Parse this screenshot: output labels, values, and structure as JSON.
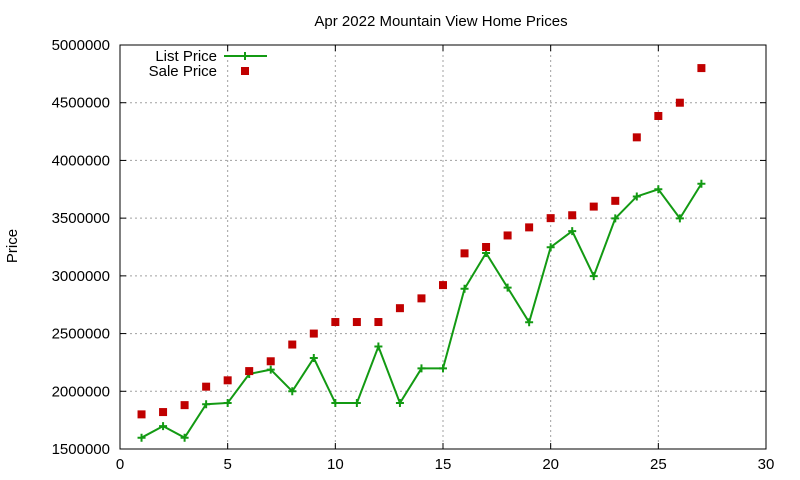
{
  "chart_data": {
    "type": "line",
    "title": "Apr 2022 Mountain View Home Prices",
    "xlabel": "",
    "ylabel": "Price",
    "xlim": [
      0,
      30
    ],
    "ylim": [
      1500000,
      5000000
    ],
    "xticks": [
      0,
      5,
      10,
      15,
      20,
      25,
      30
    ],
    "yticks": [
      1500000,
      2000000,
      2500000,
      3000000,
      3500000,
      4000000,
      4500000,
      5000000
    ],
    "grid": true,
    "legend_position": "top-left",
    "x": [
      1,
      2,
      3,
      4,
      5,
      6,
      7,
      8,
      9,
      10,
      11,
      12,
      13,
      14,
      15,
      16,
      17,
      18,
      19,
      20,
      21,
      22,
      23,
      24,
      25,
      26,
      27
    ],
    "series": [
      {
        "name": "List Price",
        "style": "line-points",
        "color": "#139a13",
        "values": [
          1598000,
          1698000,
          1598000,
          1888000,
          1899000,
          2150000,
          2188000,
          2000000,
          2288000,
          1898000,
          1898000,
          2388000,
          1898000,
          2198000,
          2198000,
          2888000,
          3198000,
          2898000,
          2598000,
          3248000,
          3388000,
          2998000,
          3498000,
          3688000,
          3750000,
          3498000,
          3798000
        ]
      },
      {
        "name": "Sale Price",
        "style": "points",
        "color": "#c00000",
        "values": [
          1800000,
          1820000,
          1880000,
          2040000,
          2095000,
          2175000,
          2260000,
          2405000,
          2500000,
          2600000,
          2600000,
          2600000,
          2720000,
          2805000,
          2920000,
          3195000,
          3250000,
          3350000,
          3420000,
          3500000,
          3525000,
          3600000,
          3650000,
          4200000,
          4385000,
          4500000,
          4800000
        ]
      }
    ]
  }
}
